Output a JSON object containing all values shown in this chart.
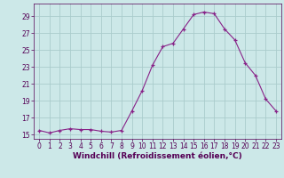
{
  "x": [
    0,
    1,
    2,
    3,
    4,
    5,
    6,
    7,
    8,
    9,
    10,
    11,
    12,
    13,
    14,
    15,
    16,
    17,
    18,
    19,
    20,
    21,
    22,
    23
  ],
  "y": [
    15.5,
    15.2,
    15.5,
    15.7,
    15.6,
    15.6,
    15.4,
    15.3,
    15.5,
    17.8,
    20.2,
    23.2,
    25.4,
    25.8,
    27.5,
    29.2,
    29.5,
    29.3,
    27.5,
    26.2,
    23.5,
    22.0,
    19.2,
    17.8
  ],
  "line_color": "#882288",
  "marker": "+",
  "bg_color": "#cce8e8",
  "grid_color": "#aacccc",
  "xlabel": "Windchill (Refroidissement éolien,°C)",
  "ylabel": "",
  "xlim": [
    -0.5,
    23.5
  ],
  "ylim": [
    14.5,
    30.5
  ],
  "yticks": [
    15,
    17,
    19,
    21,
    23,
    25,
    27,
    29
  ],
  "xticks": [
    0,
    1,
    2,
    3,
    4,
    5,
    6,
    7,
    8,
    9,
    10,
    11,
    12,
    13,
    14,
    15,
    16,
    17,
    18,
    19,
    20,
    21,
    22,
    23
  ],
  "tick_fontsize": 5.5,
  "xlabel_fontsize": 6.5,
  "line_width": 0.8,
  "marker_size": 3,
  "marker_edge_width": 0.9
}
